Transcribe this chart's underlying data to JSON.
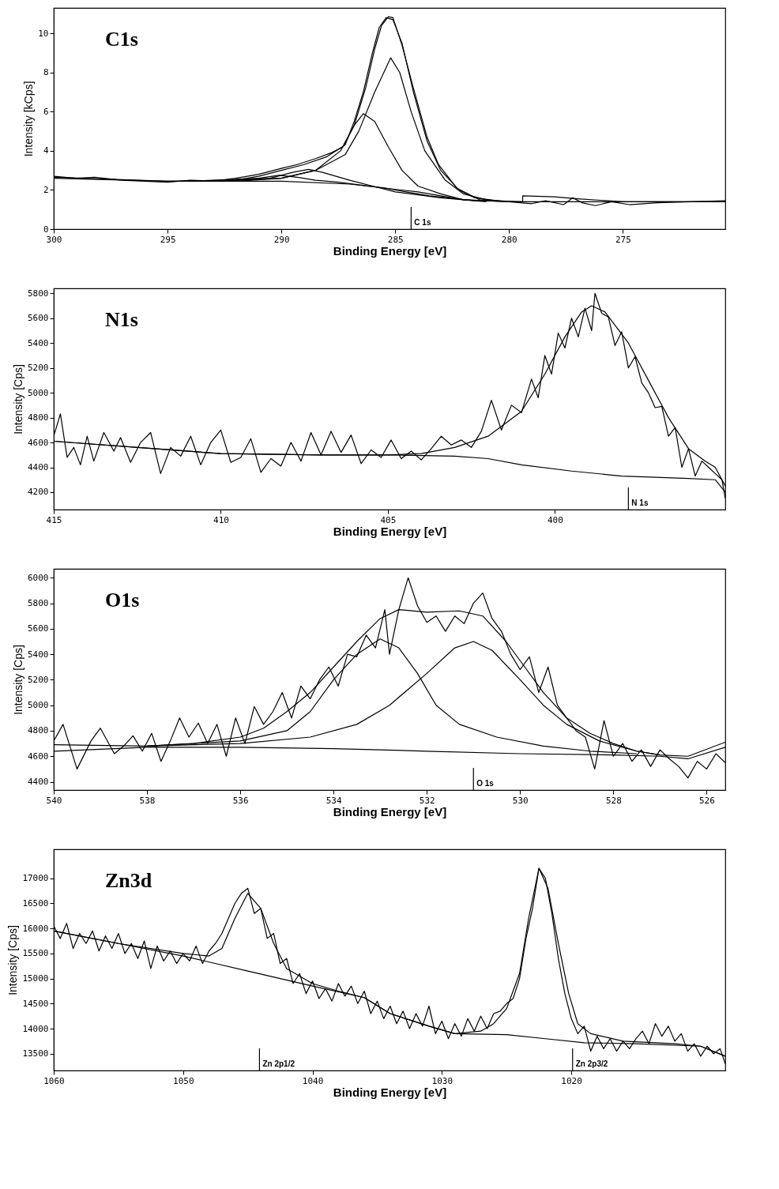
{
  "chart_data": [
    {
      "type": "line",
      "title": "C1s",
      "xlabel": "Binding Energy [eV]",
      "ylabel": "Intensity [kCps]",
      "xlim": [
        300,
        270.5
      ],
      "ylim": [
        0,
        11.3
      ],
      "xticks": [
        300,
        295,
        290,
        285,
        280,
        275
      ],
      "yticks": [
        0,
        2,
        4,
        6,
        8,
        10
      ],
      "grid": false,
      "legend": false,
      "ref_lines": [
        {
          "axis": "x",
          "value": 284.3,
          "label": "C  1s"
        }
      ],
      "series": [
        {
          "color": "#000000",
          "x": [
            300,
            299,
            298.2,
            297,
            296,
            295,
            294,
            293,
            292,
            291,
            290,
            289.3,
            288.5,
            287.8,
            287.3,
            286.8,
            286.3,
            285.9,
            285.6,
            285.3,
            285.1,
            284.7,
            284.2,
            283.6,
            283.1,
            282.3,
            281.3,
            280.5,
            279.5,
            279,
            278.4,
            277.6,
            277.2,
            276.8,
            276.2,
            275.5,
            274.7,
            273.5,
            272,
            270.5
          ],
          "values": [
            2.7,
            2.6,
            2.65,
            2.5,
            2.45,
            2.4,
            2.5,
            2.45,
            2.6,
            2.8,
            3.1,
            3.3,
            3.6,
            3.9,
            4.2,
            5.3,
            7.2,
            9.2,
            10.4,
            10.85,
            10.8,
            9.4,
            7.2,
            4.7,
            3.3,
            2.1,
            1.5,
            1.45,
            1.35,
            1.3,
            1.45,
            1.25,
            1.6,
            1.35,
            1.2,
            1.4,
            1.25,
            1.35,
            1.4,
            1.45
          ]
        },
        {
          "color": "#000000",
          "x": [
            300,
            295,
            292,
            291,
            290,
            289,
            288,
            287.2,
            286.8,
            286.4,
            286,
            285.7,
            285.4,
            285.1,
            284.7,
            284.2,
            283.6,
            283,
            282.2,
            281.5,
            280.5,
            279.4,
            279.4,
            278,
            277,
            275,
            270.5
          ],
          "values": [
            2.6,
            2.45,
            2.5,
            2.7,
            3.0,
            3.3,
            3.7,
            4.3,
            5.5,
            7,
            9,
            10.3,
            10.8,
            10.7,
            9.5,
            7,
            4.5,
            3,
            2,
            1.6,
            1.45,
            1.4,
            1.7,
            1.65,
            1.55,
            1.4,
            1.4
          ]
        },
        {
          "color": "#000000",
          "x": [
            300,
            295,
            290,
            287,
            284,
            282,
            280,
            279.4,
            275,
            270.5
          ],
          "values": [
            2.65,
            2.45,
            2.45,
            2.3,
            1.9,
            1.5,
            1.4,
            1.4,
            1.4,
            1.4
          ]
        },
        {
          "color": "#000000",
          "x": [
            292,
            290,
            288.5,
            287.2,
            286.6,
            285.9,
            285.2,
            284.8,
            284.3,
            283.7,
            282.8,
            282,
            281,
            280
          ],
          "values": [
            2.45,
            2.6,
            3.0,
            3.8,
            5,
            7,
            8.75,
            8,
            6,
            4,
            2.5,
            1.8,
            1.5,
            1.4
          ]
        },
        {
          "color": "#000000",
          "x": [
            293,
            290,
            288.5,
            287.4,
            286.8,
            286.4,
            285.9,
            285.3,
            284.7,
            284,
            283,
            282,
            280
          ],
          "values": [
            2.45,
            2.6,
            3,
            4,
            5.3,
            5.9,
            5.5,
            4.2,
            3,
            2.2,
            1.8,
            1.5,
            1.4
          ]
        },
        {
          "color": "#000000",
          "x": [
            293,
            290.5,
            289.5,
            288.8,
            288.2,
            287,
            286,
            285,
            283,
            281
          ],
          "values": [
            2.45,
            2.6,
            2.9,
            3.05,
            2.9,
            2.5,
            2.2,
            1.9,
            1.6,
            1.4
          ]
        },
        {
          "color": "#000000",
          "x": [
            294,
            291,
            290.1,
            289.3,
            288.5,
            287.5,
            285.5,
            283.5,
            281.5
          ],
          "values": [
            2.45,
            2.6,
            2.75,
            2.65,
            2.5,
            2.4,
            2.1,
            1.7,
            1.45
          ]
        }
      ]
    },
    {
      "type": "line",
      "title": "N1s",
      "xlabel": "Binding Energy [eV]",
      "ylabel": "Intensity [Cps]",
      "xlim": [
        415,
        394.9
      ],
      "ylim": [
        4060,
        5840
      ],
      "xticks": [
        415,
        410,
        405,
        400
      ],
      "yticks": [
        4200,
        4400,
        4600,
        4800,
        5000,
        5200,
        5400,
        5600,
        5800
      ],
      "grid": false,
      "legend": false,
      "ref_lines": [
        {
          "axis": "x",
          "value": 397.8,
          "label": "N  1s"
        }
      ],
      "series": [
        {
          "color": "#000000",
          "x": [
            415,
            414.8,
            414.6,
            414.4,
            414.2,
            414,
            413.8,
            413.5,
            413.2,
            413,
            412.7,
            412.4,
            412.1,
            411.8,
            411.5,
            411.2,
            410.9,
            410.6,
            410.3,
            410,
            409.7,
            409.4,
            409.1,
            408.8,
            408.5,
            408.2,
            407.9,
            407.6,
            407.3,
            407,
            406.7,
            406.4,
            406.1,
            405.8,
            405.5,
            405.2,
            404.9,
            404.6,
            404.3,
            404,
            403.7,
            403.4,
            403.1,
            402.8,
            402.5,
            402.2,
            401.9,
            401.6,
            401.3,
            401,
            400.7,
            400.5,
            400.3,
            400.1,
            399.9,
            399.7,
            399.5,
            399.3,
            399.1,
            398.9,
            398.8,
            398.6,
            398.4,
            398.2,
            398,
            397.8,
            397.6,
            397.4,
            397.2,
            397,
            396.8,
            396.6,
            396.4,
            396.2,
            396,
            395.8,
            395.6,
            395.4,
            395.2,
            395,
            394.9
          ],
          "values": [
            4650,
            4830,
            4480,
            4560,
            4420,
            4650,
            4450,
            4680,
            4530,
            4640,
            4440,
            4600,
            4680,
            4350,
            4560,
            4490,
            4650,
            4420,
            4600,
            4700,
            4440,
            4480,
            4630,
            4360,
            4470,
            4410,
            4600,
            4450,
            4680,
            4500,
            4690,
            4520,
            4660,
            4430,
            4540,
            4480,
            4620,
            4470,
            4530,
            4460,
            4550,
            4650,
            4580,
            4620,
            4560,
            4690,
            4940,
            4700,
            4900,
            4840,
            5110,
            4960,
            5300,
            5150,
            5480,
            5360,
            5600,
            5450,
            5680,
            5500,
            5800,
            5640,
            5610,
            5380,
            5490,
            5200,
            5290,
            5080,
            5000,
            4880,
            4890,
            4650,
            4720,
            4400,
            4550,
            4330,
            4450,
            4400,
            4350,
            4300,
            4150
          ]
        },
        {
          "color": "#000000",
          "x": [
            415,
            412,
            410,
            407,
            405,
            404,
            403,
            402,
            401,
            400.3,
            399.7,
            399.2,
            398.9,
            398.5,
            397.8,
            397.2,
            396.6,
            396,
            395.5,
            395.2,
            394.9
          ],
          "values": [
            4610,
            4550,
            4510,
            4500,
            4500,
            4510,
            4560,
            4650,
            4850,
            5150,
            5450,
            5650,
            5700,
            5650,
            5400,
            5100,
            4800,
            4550,
            4450,
            4400,
            4250
          ]
        },
        {
          "color": "#000000",
          "x": [
            415,
            412,
            410,
            407,
            405,
            403,
            402,
            401,
            399.5,
            398,
            396,
            395.2,
            394.9
          ],
          "values": [
            4610,
            4550,
            4510,
            4500,
            4500,
            4490,
            4470,
            4420,
            4370,
            4330,
            4310,
            4300,
            4200
          ]
        }
      ]
    },
    {
      "type": "line",
      "title": "O1s",
      "xlabel": "Binding Energy [eV]",
      "ylabel": "Intensity [Cps]",
      "xlim": [
        540,
        525.6
      ],
      "ylim": [
        4335,
        6070
      ],
      "xticks": [
        540,
        538,
        536,
        534,
        532,
        530,
        528,
        526
      ],
      "yticks": [
        4400,
        4600,
        4800,
        5000,
        5200,
        5400,
        5600,
        5800,
        6000
      ],
      "grid": false,
      "legend": false,
      "ref_lines": [
        {
          "axis": "x",
          "value": 531,
          "label": "O  1s"
        }
      ],
      "series": [
        {
          "color": "#000000",
          "x": [
            540,
            539.8,
            539.5,
            539.2,
            539,
            538.7,
            538.5,
            538.3,
            538.1,
            537.9,
            537.7,
            537.5,
            537.3,
            537.1,
            536.9,
            536.7,
            536.5,
            536.3,
            536.1,
            535.9,
            535.7,
            535.5,
            535.3,
            535.1,
            534.9,
            534.7,
            534.5,
            534.3,
            534.1,
            533.9,
            533.7,
            533.5,
            533.3,
            533.1,
            532.9,
            532.8,
            532.6,
            532.4,
            532.2,
            532,
            531.8,
            531.6,
            531.4,
            531.2,
            531,
            530.8,
            530.6,
            530.4,
            530.2,
            530,
            529.8,
            529.6,
            529.4,
            529.2,
            529,
            528.8,
            528.6,
            528.4,
            528.2,
            528,
            527.8,
            527.6,
            527.4,
            527.2,
            527,
            526.8,
            526.6,
            526.4,
            526.2,
            526,
            525.8,
            525.6
          ],
          "values": [
            4720,
            4850,
            4500,
            4720,
            4820,
            4620,
            4680,
            4760,
            4640,
            4780,
            4560,
            4720,
            4900,
            4750,
            4860,
            4700,
            4850,
            4600,
            4900,
            4700,
            4990,
            4850,
            4950,
            5100,
            4900,
            5150,
            5050,
            5200,
            5300,
            5150,
            5400,
            5380,
            5550,
            5450,
            5750,
            5400,
            5750,
            6000,
            5780,
            5650,
            5700,
            5580,
            5700,
            5640,
            5800,
            5880,
            5680,
            5580,
            5400,
            5280,
            5380,
            5100,
            5300,
            5000,
            4900,
            4800,
            4750,
            4500,
            4880,
            4600,
            4700,
            4560,
            4650,
            4520,
            4650,
            4580,
            4520,
            4430,
            4560,
            4500,
            4620,
            4550
          ]
        },
        {
          "color": "#000000",
          "x": [
            540,
            538,
            537,
            536,
            535.5,
            535,
            534.5,
            534,
            533.5,
            533,
            532.6,
            532,
            531.3,
            530.8,
            530.3,
            529.9,
            529.5,
            529,
            528.5,
            528,
            527.5,
            527,
            526.4,
            525.6
          ],
          "values": [
            4690,
            4680,
            4700,
            4750,
            4820,
            4950,
            5100,
            5300,
            5500,
            5680,
            5750,
            5730,
            5740,
            5700,
            5500,
            5300,
            5100,
            4900,
            4780,
            4700,
            4640,
            4610,
            4600,
            4710
          ]
        },
        {
          "color": "#000000",
          "x": [
            538,
            536,
            535,
            534.5,
            534,
            533.5,
            533,
            532.6,
            532.2,
            531.8,
            531.3,
            530.5,
            529.5,
            528.5,
            527.5
          ],
          "values": [
            4680,
            4720,
            4800,
            4950,
            5200,
            5400,
            5520,
            5450,
            5250,
            5000,
            4850,
            4750,
            4680,
            4640,
            4620
          ]
        },
        {
          "color": "#000000",
          "x": [
            538,
            536,
            534.5,
            533.5,
            532.8,
            532,
            531.4,
            531,
            530.6,
            530,
            529.5,
            529,
            528.3,
            527.5,
            527
          ],
          "values": [
            4680,
            4700,
            4750,
            4850,
            5000,
            5250,
            5450,
            5500,
            5430,
            5200,
            5000,
            4850,
            4720,
            4640,
            4610
          ]
        },
        {
          "color": "#000000",
          "x": [
            540,
            538,
            536,
            534,
            532,
            530,
            528,
            527,
            526.4,
            525.6
          ],
          "values": [
            4640,
            4670,
            4670,
            4660,
            4640,
            4620,
            4610,
            4600,
            4580,
            4670
          ]
        }
      ]
    },
    {
      "type": "line",
      "title": "Zn3d",
      "xlabel": "Binding Energy [eV]",
      "ylabel": "Intensity [Cps]",
      "xlim": [
        1060,
        1008.1
      ],
      "ylim": [
        13165,
        17580
      ],
      "xticks": [
        1060,
        1050,
        1040,
        1030,
        1020
      ],
      "yticks": [
        13500,
        14000,
        14500,
        15000,
        15500,
        16000,
        16500,
        17000
      ],
      "grid": false,
      "legend": false,
      "ref_lines": [
        {
          "axis": "x",
          "value": 1044.1,
          "label": "Zn  2p1/2"
        },
        {
          "axis": "x",
          "value": 1019.9,
          "label": "Zn  2p3/2"
        }
      ],
      "series": [
        {
          "color": "#000000",
          "x": [
            1060,
            1059.5,
            1059,
            1058.5,
            1058,
            1057.5,
            1057,
            1056.5,
            1056,
            1055.5,
            1055,
            1054.5,
            1054,
            1053.5,
            1053,
            1052.5,
            1052,
            1051.5,
            1051,
            1050.5,
            1050,
            1049.5,
            1049,
            1048.5,
            1048,
            1047.5,
            1047,
            1046.5,
            1046,
            1045.5,
            1045,
            1044.5,
            1044,
            1043.5,
            1043,
            1042.5,
            1042,
            1041.5,
            1041,
            1040.5,
            1040,
            1039.5,
            1039,
            1038.5,
            1038,
            1037.5,
            1037,
            1036.5,
            1036,
            1035.5,
            1035,
            1034.5,
            1034,
            1033.5,
            1033,
            1032.5,
            1032,
            1031.5,
            1031,
            1030.5,
            1030,
            1029.5,
            1029,
            1028.5,
            1028,
            1027.5,
            1027,
            1026.5,
            1026,
            1025.5,
            1025,
            1024.5,
            1024,
            1023.5,
            1023,
            1022.5,
            1022,
            1021.5,
            1021,
            1020.5,
            1020,
            1019.5,
            1019,
            1018.5,
            1018,
            1017.5,
            1017,
            1016.5,
            1016,
            1015.5,
            1015,
            1014.5,
            1014,
            1013.5,
            1013,
            1012.5,
            1012,
            1011.5,
            1011,
            1010.5,
            1010,
            1009.5,
            1009,
            1008.5,
            1008.1
          ],
          "values": [
            16050,
            15800,
            16100,
            15600,
            15900,
            15700,
            15950,
            15550,
            15850,
            15600,
            15900,
            15500,
            15700,
            15400,
            15750,
            15200,
            15650,
            15350,
            15550,
            15300,
            15500,
            15350,
            15650,
            15300,
            15550,
            15700,
            15900,
            16200,
            16500,
            16700,
            16800,
            16300,
            16400,
            15800,
            15900,
            15300,
            15400,
            14900,
            15100,
            14700,
            14950,
            14600,
            14800,
            14550,
            14900,
            14650,
            14850,
            14500,
            14750,
            14300,
            14550,
            14200,
            14450,
            14100,
            14350,
            14000,
            14300,
            14050,
            14450,
            13900,
            14150,
            13800,
            14100,
            13850,
            14200,
            13950,
            14250,
            14000,
            14300,
            14350,
            14500,
            14600,
            15000,
            15800,
            16400,
            17200,
            17000,
            16300,
            15400,
            14700,
            14200,
            13900,
            14050,
            13550,
            13850,
            13600,
            13800,
            13550,
            13750,
            13600,
            13800,
            13950,
            13700,
            14100,
            13850,
            14050,
            13750,
            13900,
            13550,
            13700,
            13450,
            13650,
            13500,
            13600,
            13300
          ]
        },
        {
          "color": "#000000",
          "x": [
            1060,
            1055,
            1050,
            1048,
            1047,
            1046,
            1045,
            1044,
            1043,
            1042,
            1040,
            1038,
            1036,
            1034,
            1031,
            1029,
            1027,
            1026,
            1025,
            1024,
            1023.3,
            1022.5,
            1021.8,
            1021,
            1020.2,
            1019.5,
            1018.5,
            1016,
            1012,
            1010,
            1008.1
          ],
          "values": [
            15950,
            15700,
            15500,
            15450,
            15600,
            16200,
            16700,
            16400,
            15700,
            15200,
            14900,
            14750,
            14620,
            14300,
            14050,
            13900,
            13950,
            14100,
            14400,
            15100,
            16200,
            17200,
            16800,
            15700,
            14700,
            14100,
            13900,
            13750,
            13700,
            13650,
            13450
          ]
        },
        {
          "color": "#000000",
          "x": [
            1060,
            1055,
            1050,
            1045,
            1040,
            1036,
            1034,
            1031,
            1029,
            1025,
            1022,
            1019,
            1015,
            1010,
            1008.1
          ],
          "values": [
            15950,
            15700,
            15450,
            15150,
            14850,
            14620,
            14300,
            14050,
            13900,
            13880,
            13800,
            13720,
            13700,
            13650,
            13450
          ]
        }
      ]
    }
  ]
}
